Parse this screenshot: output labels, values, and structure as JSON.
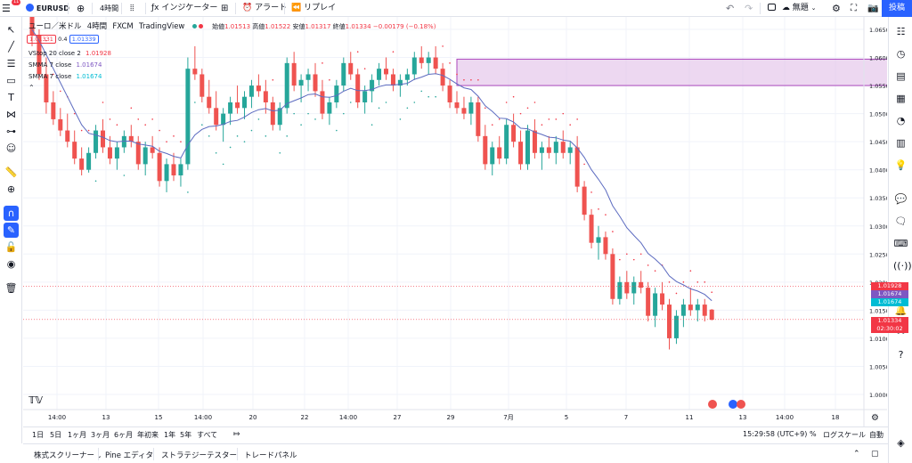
{
  "toolbar": {
    "notifications": "11",
    "symbol": "EURUSD",
    "interval": "4時間",
    "indicators": "インジケーター",
    "alert": "アラート",
    "replay": "リプレイ",
    "layout_name": "無題",
    "publish": "投稿"
  },
  "legend": {
    "title": "ユーロ／米ドル",
    "interval": "4時間",
    "source": "FXCM",
    "platform": "TradingView",
    "open_label": "始値",
    "open": "1.01513",
    "high_label": "高値",
    "high": "1.01522",
    "low_label": "安値",
    "low": "1.01317",
    "close_label": "終値",
    "close": "1.01334",
    "change": "−0.00179 (−0.18%)",
    "sell_price": "1.01331",
    "spread": "0.4",
    "buy_price": "1.01339",
    "indicators": [
      {
        "name": "VStop 20 close 2",
        "value": "1.01928",
        "color": "#f23645"
      },
      {
        "name": "SMMA 7 close",
        "value": "1.01674",
        "color": "#7e57c2"
      },
      {
        "name": "SMMA 7 close",
        "value": "1.01674",
        "color": "#00bcd4"
      }
    ]
  },
  "price_axis": {
    "ticks": [
      "1.06500",
      "1.06000",
      "1.05500",
      "1.05000",
      "1.04500",
      "1.04000",
      "1.03500",
      "1.03000",
      "1.02500",
      "1.02000",
      "1.01500",
      "1.01000",
      "1.00500",
      "1.00000"
    ],
    "labels": [
      {
        "value": "1.01928",
        "color": "#f23645"
      },
      {
        "value": "1.01674",
        "color": "#7e57c2"
      },
      {
        "value": "1.01674",
        "color": "#00bcd4"
      },
      {
        "value": "1.01334",
        "color": "#f23645"
      }
    ],
    "countdown": "02:30:02"
  },
  "time_axis": {
    "ticks": [
      "14:00",
      "13",
      "15",
      "14:00",
      "20",
      "22",
      "14:00",
      "27",
      "29",
      "7月",
      "5",
      "7",
      "11",
      "13",
      "14:00",
      "18"
    ]
  },
  "range_bar": {
    "ranges": [
      "1日",
      "5日",
      "1ヶ月",
      "3ヶ月",
      "6ヶ月",
      "年初来",
      "1年",
      "5年",
      "すべて"
    ],
    "clock": "15:29:58 (UTC+9)",
    "percent": "%",
    "log_scale": "ログスケール",
    "auto": "自動"
  },
  "bottom_panel": {
    "tabs": [
      "株式スクリーナー",
      "Pine エディタ",
      "ストラテジーテスター",
      "トレードパネル"
    ]
  },
  "chart_data": {
    "type": "candlestick",
    "symbol": "EURUSD",
    "interval": "4時間",
    "ylim": [
      0.998,
      1.067
    ],
    "up_color": "#26a69a",
    "down_color": "#ef5350",
    "candles": [
      [
        1.068,
        1.069,
        1.062,
        1.064
      ],
      [
        1.064,
        1.065,
        1.056,
        1.057
      ],
      [
        1.057,
        1.06,
        1.05,
        1.052
      ],
      [
        1.052,
        1.054,
        1.048,
        1.049
      ],
      [
        1.049,
        1.051,
        1.046,
        1.047
      ],
      [
        1.047,
        1.05,
        1.044,
        1.045
      ],
      [
        1.045,
        1.047,
        1.041,
        1.042
      ],
      [
        1.042,
        1.044,
        1.039,
        1.04
      ],
      [
        1.04,
        1.044,
        1.0395,
        1.043
      ],
      [
        1.043,
        1.048,
        1.042,
        1.047
      ],
      [
        1.047,
        1.049,
        1.043,
        1.044
      ],
      [
        1.044,
        1.046,
        1.041,
        1.042
      ],
      [
        1.042,
        1.045,
        1.04,
        1.044
      ],
      [
        1.044,
        1.047,
        1.043,
        1.046
      ],
      [
        1.046,
        1.048,
        1.044,
        1.045
      ],
      [
        1.045,
        1.046,
        1.04,
        1.041
      ],
      [
        1.041,
        1.045,
        1.039,
        1.044
      ],
      [
        1.044,
        1.046,
        1.042,
        1.043
      ],
      [
        1.043,
        1.044,
        1.037,
        1.038
      ],
      [
        1.038,
        1.042,
        1.036,
        1.041
      ],
      [
        1.041,
        1.043,
        1.038,
        1.039
      ],
      [
        1.039,
        1.042,
        1.037,
        1.041
      ],
      [
        1.041,
        1.06,
        1.04,
        1.058
      ],
      [
        1.058,
        1.062,
        1.056,
        1.057
      ],
      [
        1.057,
        1.058,
        1.052,
        1.053
      ],
      [
        1.053,
        1.056,
        1.05,
        1.051
      ],
      [
        1.051,
        1.054,
        1.047,
        1.048
      ],
      [
        1.048,
        1.051,
        1.045,
        1.05
      ],
      [
        1.05,
        1.053,
        1.048,
        1.052
      ],
      [
        1.052,
        1.055,
        1.05,
        1.051
      ],
      [
        1.051,
        1.054,
        1.049,
        1.053
      ],
      [
        1.053,
        1.056,
        1.051,
        1.055
      ],
      [
        1.055,
        1.057,
        1.053,
        1.054
      ],
      [
        1.054,
        1.056,
        1.05,
        1.052
      ],
      [
        1.052,
        1.053,
        1.047,
        1.048
      ],
      [
        1.048,
        1.052,
        1.047,
        1.051
      ],
      [
        1.051,
        1.06,
        1.05,
        1.059
      ],
      [
        1.059,
        1.061,
        1.054,
        1.055
      ],
      [
        1.055,
        1.057,
        1.052,
        1.056
      ],
      [
        1.056,
        1.058,
        1.054,
        1.057
      ],
      [
        1.057,
        1.059,
        1.053,
        1.054
      ],
      [
        1.054,
        1.056,
        1.049,
        1.05
      ],
      [
        1.05,
        1.053,
        1.048,
        1.052
      ],
      [
        1.052,
        1.056,
        1.051,
        1.055
      ],
      [
        1.055,
        1.06,
        1.054,
        1.059
      ],
      [
        1.059,
        1.061,
        1.056,
        1.057
      ],
      [
        1.057,
        1.058,
        1.051,
        1.052
      ],
      [
        1.052,
        1.055,
        1.05,
        1.054
      ],
      [
        1.054,
        1.057,
        1.052,
        1.056
      ],
      [
        1.056,
        1.059,
        1.055,
        1.058
      ],
      [
        1.058,
        1.06,
        1.056,
        1.057
      ],
      [
        1.057,
        1.058,
        1.054,
        1.055
      ],
      [
        1.055,
        1.057,
        1.053,
        1.056
      ],
      [
        1.056,
        1.058,
        1.055,
        1.057
      ],
      [
        1.057,
        1.061,
        1.056,
        1.06
      ],
      [
        1.06,
        1.062,
        1.058,
        1.059
      ],
      [
        1.059,
        1.061,
        1.057,
        1.06
      ],
      [
        1.06,
        1.062,
        1.057,
        1.058
      ],
      [
        1.058,
        1.059,
        1.054,
        1.055
      ],
      [
        1.055,
        1.056,
        1.051,
        1.052
      ],
      [
        1.052,
        1.054,
        1.05,
        1.051
      ],
      [
        1.051,
        1.053,
        1.049,
        1.05
      ],
      [
        1.05,
        1.053,
        1.048,
        1.052
      ],
      [
        1.052,
        1.053,
        1.045,
        1.046
      ],
      [
        1.046,
        1.048,
        1.04,
        1.041
      ],
      [
        1.041,
        1.045,
        1.039,
        1.044
      ],
      [
        1.044,
        1.046,
        1.041,
        1.042
      ],
      [
        1.042,
        1.049,
        1.041,
        1.048
      ],
      [
        1.048,
        1.05,
        1.044,
        1.045
      ],
      [
        1.045,
        1.047,
        1.04,
        1.041
      ],
      [
        1.041,
        1.048,
        1.04,
        1.047
      ],
      [
        1.047,
        1.049,
        1.042,
        1.043
      ],
      [
        1.043,
        1.045,
        1.04,
        1.044
      ],
      [
        1.044,
        1.046,
        1.042,
        1.043
      ],
      [
        1.043,
        1.046,
        1.041,
        1.045
      ],
      [
        1.045,
        1.047,
        1.042,
        1.043
      ],
      [
        1.043,
        1.045,
        1.041,
        1.044
      ],
      [
        1.044,
        1.046,
        1.036,
        1.037
      ],
      [
        1.037,
        1.038,
        1.031,
        1.032
      ],
      [
        1.032,
        1.033,
        1.026,
        1.027
      ],
      [
        1.027,
        1.03,
        1.024,
        1.028
      ],
      [
        1.028,
        1.029,
        1.024,
        1.025
      ],
      [
        1.025,
        1.026,
        1.016,
        1.017
      ],
      [
        1.017,
        1.021,
        1.016,
        1.02
      ],
      [
        1.02,
        1.022,
        1.017,
        1.018
      ],
      [
        1.018,
        1.021,
        1.016,
        1.02
      ],
      [
        1.02,
        1.022,
        1.018,
        1.019
      ],
      [
        1.019,
        1.02,
        1.013,
        1.014
      ],
      [
        1.014,
        1.019,
        1.012,
        1.018
      ],
      [
        1.018,
        1.02,
        1.015,
        1.016
      ],
      [
        1.016,
        1.017,
        1.008,
        1.01
      ],
      [
        1.01,
        1.015,
        1.009,
        1.014
      ],
      [
        1.014,
        1.017,
        1.012,
        1.016
      ],
      [
        1.016,
        1.019,
        1.014,
        1.015
      ],
      [
        1.015,
        1.017,
        1.013,
        1.016
      ],
      [
        1.016,
        1.017,
        1.013,
        1.014
      ],
      [
        1.0151,
        1.0152,
        1.0132,
        1.0133
      ]
    ],
    "smma": [
      1.065,
      1.063,
      1.0605,
      1.058,
      1.0555,
      1.053,
      1.0505,
      1.048,
      1.0465,
      1.0462,
      1.0458,
      1.0452,
      1.045,
      1.0451,
      1.0451,
      1.0446,
      1.0444,
      1.0442,
      1.0433,
      1.0429,
      1.0424,
      1.0421,
      1.0444,
      1.0462,
      1.0472,
      1.0477,
      1.0478,
      1.0481,
      1.0486,
      1.0488,
      1.0494,
      1.0502,
      1.0507,
      1.0509,
      1.0505,
      1.0506,
      1.0518,
      1.0523,
      1.0528,
      1.0534,
      1.0535,
      1.053,
      1.0529,
      1.0532,
      1.054,
      1.0545,
      1.0541,
      1.0541,
      1.0543,
      1.0548,
      1.0551,
      1.0551,
      1.0552,
      1.0554,
      1.0561,
      1.0565,
      1.057,
      1.0571,
      1.0568,
      1.0561,
      1.0553,
      1.0546,
      1.0543,
      1.0531,
      1.0514,
      1.0504,
      1.0492,
      1.0491,
      1.0485,
      1.0474,
      1.0473,
      1.0467,
      1.0463,
      1.0458,
      1.0457,
      1.0453,
      1.0451,
      1.0439,
      1.0422,
      1.04,
      1.0383,
      1.0364,
      1.0336,
      1.0317,
      1.0297,
      1.0283,
      1.027,
      1.0251,
      1.0241,
      1.0229,
      1.0211,
      1.0201,
      1.0195,
      1.0188,
      1.0184,
      1.0178,
      1.0167
    ],
    "zone": {
      "from_index": 60,
      "to_index": 168,
      "top": 1.0597,
      "bottom": 1.055
    }
  }
}
